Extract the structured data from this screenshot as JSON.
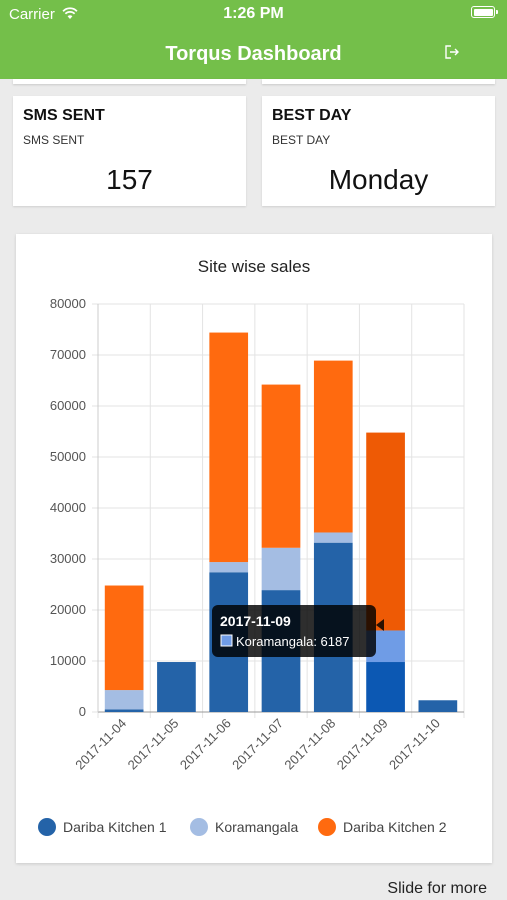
{
  "status_bar": {
    "carrier": "Carrier",
    "time": "1:26 PM"
  },
  "header": {
    "title": "Torqus Dashboard"
  },
  "cards": [
    {
      "title": "SMS SENT",
      "subtitle": "SMS SENT",
      "value": "157"
    },
    {
      "title": "BEST DAY",
      "subtitle": "BEST DAY",
      "value": "Monday"
    }
  ],
  "colors": {
    "header_bg": "#74bf4a",
    "series_1": "#2463a8",
    "series_2": "#a4bde3",
    "series_3": "#ff6a0f"
  },
  "chart_data": {
    "type": "bar",
    "stacked": true,
    "title": "Site wise sales",
    "categories": [
      "2017-11-04",
      "2017-11-05",
      "2017-11-06",
      "2017-11-07",
      "2017-11-08",
      "2017-11-09",
      "2017-11-10"
    ],
    "series": [
      {
        "name": "Dariba Kitchen 1",
        "color": "#2463a8",
        "values": [
          500,
          9800,
          27400,
          23900,
          33200,
          9800,
          2300
        ]
      },
      {
        "name": "Koramangala",
        "color": "#a4bde3",
        "values": [
          3800,
          0,
          2000,
          8300,
          2000,
          6187,
          0
        ]
      },
      {
        "name": "Dariba Kitchen 2",
        "color": "#ff6a0f",
        "values": [
          20500,
          0,
          45000,
          32000,
          33700,
          38800,
          0
        ]
      }
    ],
    "ylim": [
      0,
      80000
    ],
    "yticks": [
      "0",
      "10000",
      "20000",
      "30000",
      "40000",
      "50000",
      "60000",
      "70000",
      "80000"
    ],
    "grid": true,
    "legend": "bottom",
    "tooltip": {
      "title": "2017-11-09",
      "label": "Koramangala: 6187",
      "category_index": 5,
      "series_index": 1
    }
  },
  "footer": {
    "hint": "Slide for more"
  }
}
